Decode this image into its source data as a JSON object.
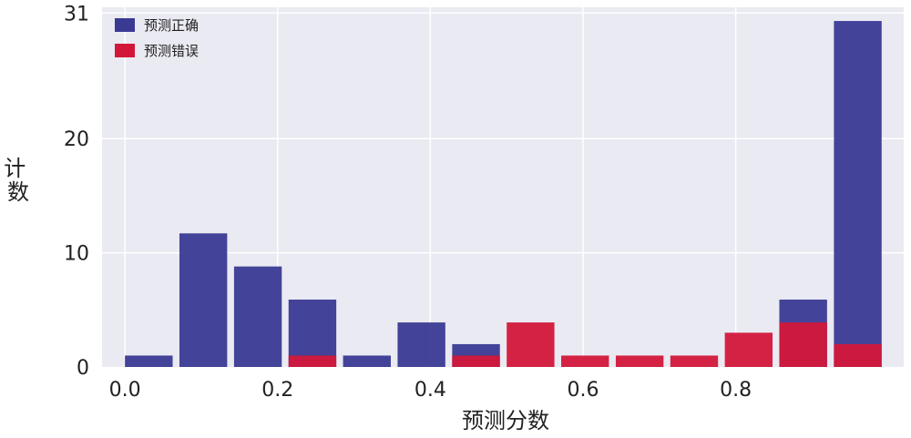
{
  "chart_data": {
    "type": "bar",
    "stacking": "overlay",
    "bins": [
      [
        0.0,
        0.0625
      ],
      [
        0.0714,
        0.1339
      ],
      [
        0.1429,
        0.2054
      ],
      [
        0.2143,
        0.2768
      ],
      [
        0.2857,
        0.3482
      ],
      [
        0.3571,
        0.4196
      ],
      [
        0.4286,
        0.4911
      ],
      [
        0.5,
        0.5625
      ],
      [
        0.5714,
        0.6339
      ],
      [
        0.6429,
        0.7054
      ],
      [
        0.7143,
        0.7768
      ],
      [
        0.7857,
        0.8482
      ],
      [
        0.8571,
        0.9196
      ],
      [
        0.9286,
        0.9911
      ]
    ],
    "series": [
      {
        "name": "预测正确",
        "color": "#3a3a93",
        "values": [
          1,
          11.7,
          8.8,
          5.9,
          1,
          3.9,
          2,
          0,
          0,
          0,
          0,
          0,
          5.9,
          30.3
        ]
      },
      {
        "name": "预测错误",
        "color": "#d3173a",
        "values": [
          0,
          0,
          0,
          1,
          0,
          0,
          1,
          3.9,
          1,
          1,
          1,
          3,
          3.9,
          2
        ]
      }
    ],
    "xlabel": "预测分数",
    "ylabel": "计数",
    "x_ticks": [
      "0.0",
      "0.2",
      "0.4",
      "0.6",
      "0.8"
    ],
    "y_ticks": [
      "0",
      "10",
      "20",
      "31"
    ],
    "xlim": [
      -0.03,
      1.02
    ],
    "ylim": [
      0,
      31.5
    ],
    "grid": true,
    "legend_position": "top-left",
    "background": "#eaeaf2"
  }
}
